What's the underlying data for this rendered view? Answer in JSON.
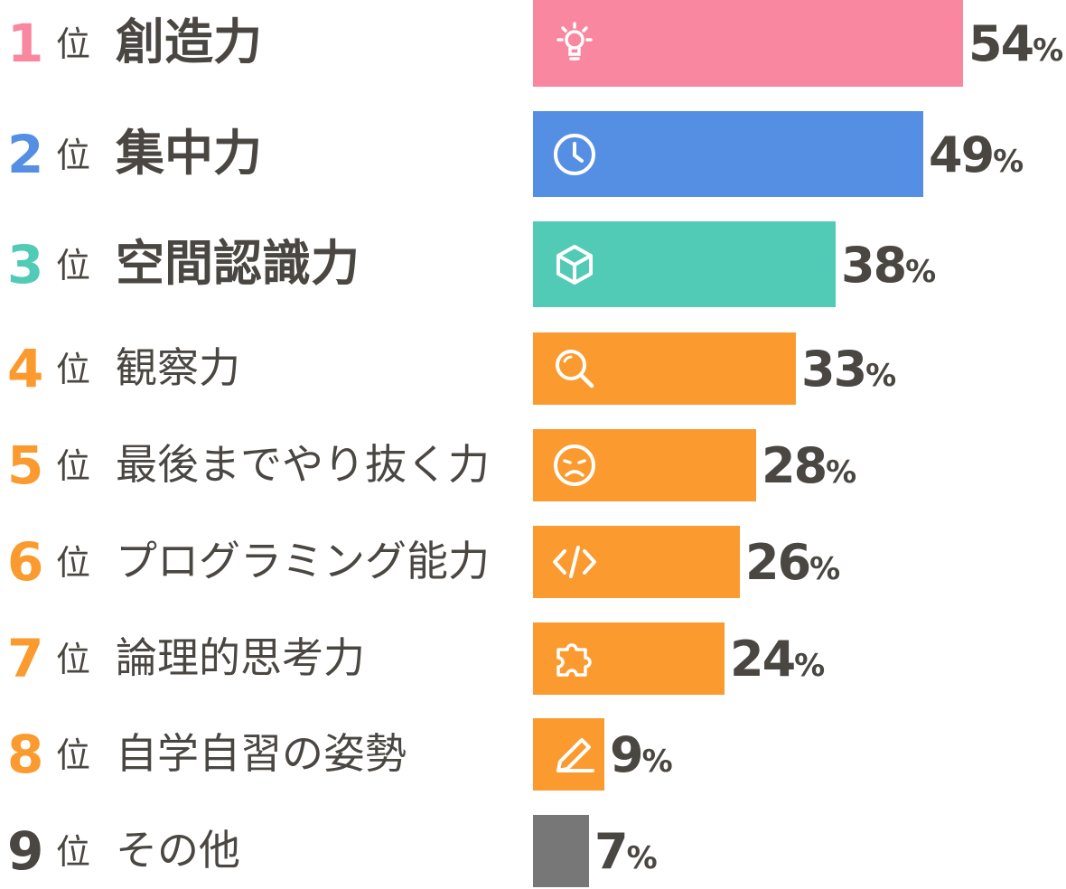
{
  "chart_data": {
    "type": "bar",
    "orientation": "horizontal",
    "xlim": [
      0,
      54
    ],
    "grid": false,
    "legend": "none",
    "unit": "%",
    "rank_suffix": "位",
    "rows": [
      {
        "rank": "1",
        "label": "創造力",
        "value": 54,
        "value_label": "54",
        "color": "#f8879f",
        "rank_color": "#f8879f",
        "icon": "lightbulb-icon",
        "emphasis": true
      },
      {
        "rank": "2",
        "label": "集中力",
        "value": 49,
        "value_label": "49",
        "color": "#558fe4",
        "rank_color": "#558fe4",
        "icon": "clock-icon",
        "emphasis": true
      },
      {
        "rank": "3",
        "label": "空間認識力",
        "value": 38,
        "value_label": "38",
        "color": "#52cbb6",
        "rank_color": "#52cbb6",
        "icon": "cube-icon",
        "emphasis": true
      },
      {
        "rank": "4",
        "label": "観察力",
        "value": 33,
        "value_label": "33",
        "color": "#fb9a2e",
        "rank_color": "#fb9a2e",
        "icon": "magnifier-icon",
        "emphasis": false
      },
      {
        "rank": "5",
        "label": "最後までやり抜く力",
        "value": 28,
        "value_label": "28",
        "color": "#fb9a2e",
        "rank_color": "#fb9a2e",
        "icon": "frown-face-icon",
        "emphasis": false
      },
      {
        "rank": "6",
        "label": "プログラミング能力",
        "value": 26,
        "value_label": "26",
        "color": "#fb9a2e",
        "rank_color": "#fb9a2e",
        "icon": "code-icon",
        "emphasis": false
      },
      {
        "rank": "7",
        "label": "論理的思考力",
        "value": 24,
        "value_label": "24",
        "color": "#fb9a2e",
        "rank_color": "#fb9a2e",
        "icon": "puzzle-icon",
        "emphasis": false
      },
      {
        "rank": "8",
        "label": "自学自習の姿勢",
        "value": 9,
        "value_label": "9",
        "color": "#fb9a2e",
        "rank_color": "#fb9a2e",
        "icon": "pencil-icon",
        "emphasis": false
      },
      {
        "rank": "9",
        "label": "その他",
        "value": 7,
        "value_label": "7",
        "color": "#777777",
        "rank_color": "#4a4642",
        "icon": "",
        "emphasis": false
      }
    ]
  }
}
